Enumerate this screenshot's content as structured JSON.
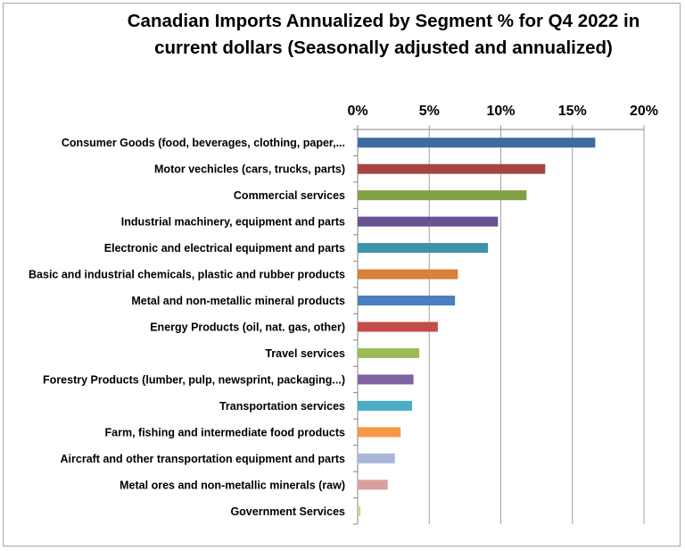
{
  "chart_data": {
    "type": "bar",
    "orientation": "horizontal",
    "title_lines": [
      "Canadian Imports Annualized by Segment % for Q4 2022 in",
      "current dollars (Seasonally adjusted and annualized)"
    ],
    "xlabel": "",
    "ylabel": "",
    "xlim": [
      0,
      20
    ],
    "x_ticks": [
      "0%",
      "5%",
      "10%",
      "15%",
      "20%"
    ],
    "x_axis_position": "top",
    "grid": "vertical",
    "categories": [
      "Consumer Goods (food, beverages, clothing, paper,...",
      "Motor vechicles (cars, trucks, parts)",
      "Commercial services",
      "Industrial machinery, equipment and parts",
      "Electronic and electrical equipment and parts",
      "Basic and industrial chemicals, plastic and rubber products",
      "Metal and non-metallic mineral products",
      "Energy Products (oil, nat. gas, other)",
      "Travel services",
      "Forestry  Products (lumber, pulp, newsprint, packaging...)",
      "Transportation services",
      "Farm, fishing and intermediate food products",
      "Aircraft and other transportation equipment and parts",
      "Metal ores and non-metallic minerals (raw)",
      "Government Services"
    ],
    "values": [
      16.6,
      13.1,
      11.8,
      9.8,
      9.1,
      7.0,
      6.8,
      5.6,
      4.3,
      3.9,
      3.8,
      3.0,
      2.6,
      2.1,
      0.2
    ],
    "colors": [
      "#3f6ba3",
      "#a64440",
      "#81a046",
      "#6a5190",
      "#3c93ab",
      "#d98039",
      "#4a7ec1",
      "#c44d4b",
      "#9bbb59",
      "#8064a2",
      "#4bacc6",
      "#f79646",
      "#a9b8d9",
      "#d9a0a0",
      "#c3d69b"
    ],
    "legend": "none"
  }
}
